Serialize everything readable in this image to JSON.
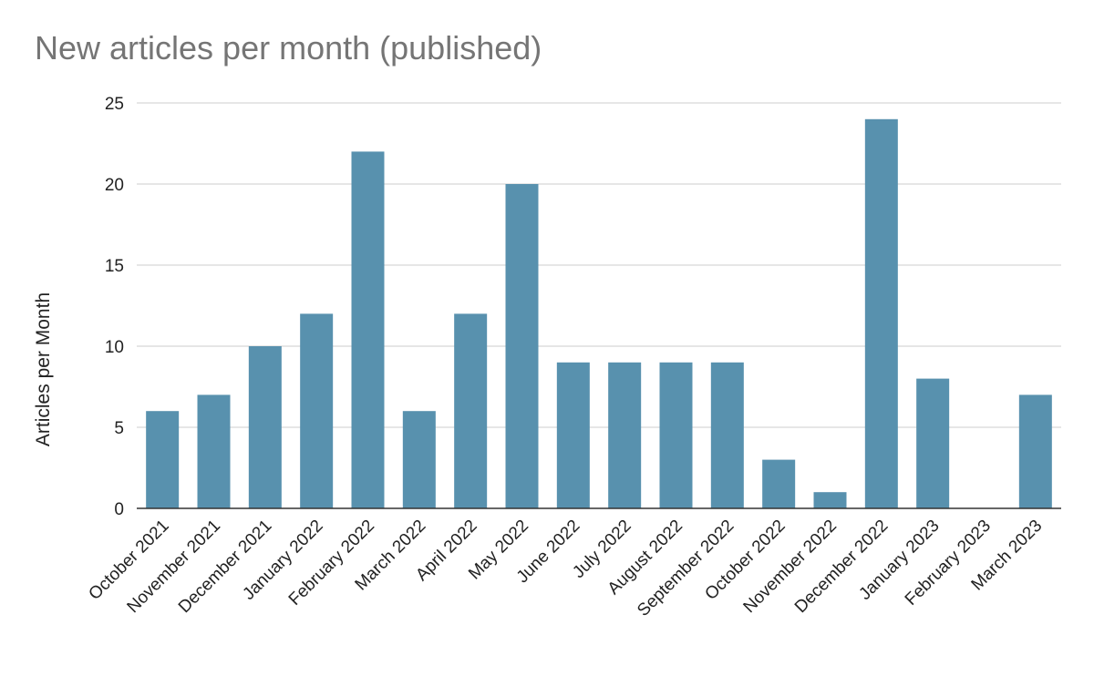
{
  "chart_data": {
    "type": "bar",
    "title": "New articles per month (published)",
    "xlabel": "",
    "ylabel": "Articles per Month",
    "ylim": [
      0,
      25
    ],
    "yticks": [
      "0",
      "5",
      "10",
      "15",
      "20",
      "25"
    ],
    "grid": true,
    "legend": "none",
    "bar_color": "#5891ae",
    "categories": [
      "October 2021",
      "November 2021",
      "December 2021",
      "January 2022",
      "February 2022",
      "March 2022",
      "April 2022",
      "May 2022",
      "June 2022",
      "July 2022",
      "August 2022",
      "September 2022",
      "October 2022",
      "November 2022",
      "December 2022",
      "January 2023",
      "February 2023",
      "March 2023"
    ],
    "values": [
      6,
      7,
      10,
      12,
      22,
      6,
      12,
      20,
      9,
      9,
      9,
      9,
      3,
      1,
      24,
      8,
      0,
      7
    ]
  }
}
